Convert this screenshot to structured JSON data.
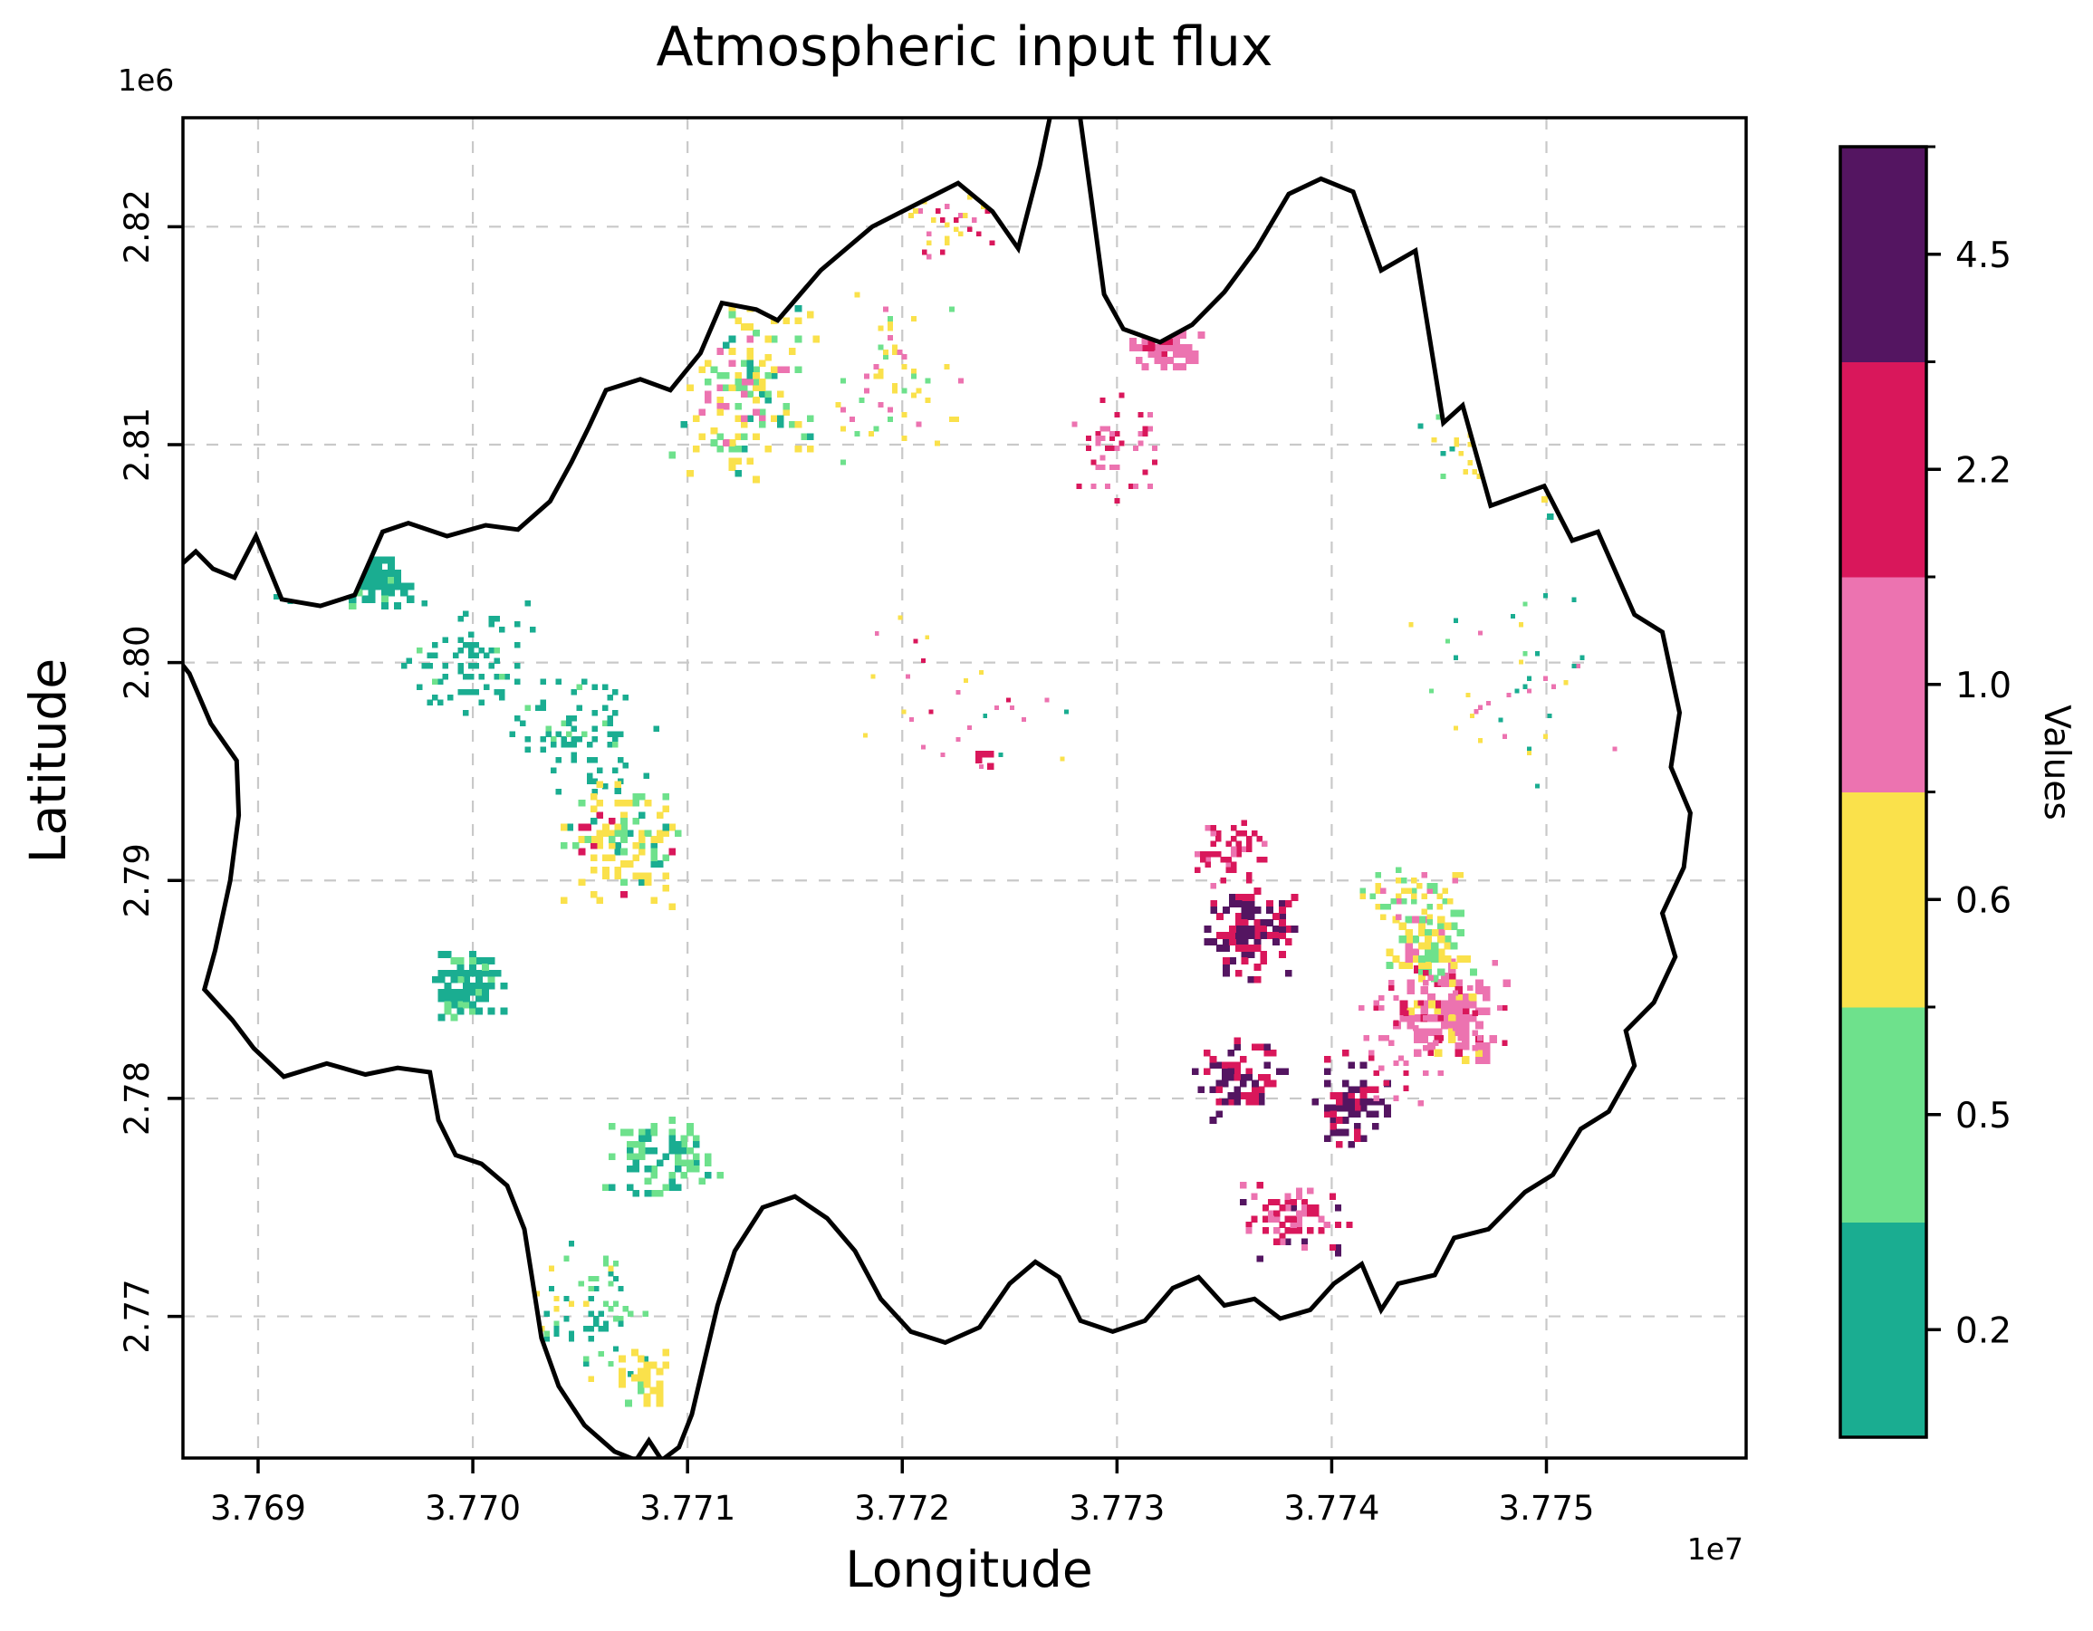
{
  "chart_data": {
    "type": "heatmap",
    "title": "Atmospheric input flux",
    "xlabel": "Longitude",
    "ylabel": "Latitude",
    "x_offset_text": "1e7",
    "y_offset_text": "1e6",
    "grid": true,
    "xlim": [
      37686500,
      37759300
    ],
    "ylim": [
      2763500,
      2825000
    ],
    "xticks": [
      37690000,
      37700000,
      37710000,
      37720000,
      37730000,
      37740000,
      37750000
    ],
    "xtick_labels": [
      "3.769",
      "3.770",
      "3.771",
      "3.772",
      "3.773",
      "3.774",
      "3.775"
    ],
    "yticks": [
      2770000,
      2780000,
      2790000,
      2800000,
      2810000,
      2820000
    ],
    "ytick_labels": [
      "2.77",
      "2.78",
      "2.79",
      "2.80",
      "2.81",
      "2.82"
    ],
    "colorbar": {
      "label": "Values",
      "position": "right",
      "classes_bottom_to_top": [
        {
          "label": "0.2",
          "color": "#1aad91"
        },
        {
          "label": "0.5",
          "color": "#6ee18c"
        },
        {
          "label": "0.6",
          "color": "#fae14b"
        },
        {
          "label": "1.0",
          "color": "#ec73b0"
        },
        {
          "label": "2.2",
          "color": "#d9175b"
        },
        {
          "label": "4.5",
          "color": "#541561"
        }
      ]
    },
    "boundary_color": "#000000",
    "grid_color": "#c9c9c9",
    "boundary": [
      [
        37686200,
        2804300
      ],
      [
        37687100,
        2805100
      ],
      [
        37687900,
        2804300
      ],
      [
        37688900,
        2803900
      ],
      [
        37689900,
        2805800
      ],
      [
        37691100,
        2802900
      ],
      [
        37692900,
        2802600
      ],
      [
        37694500,
        2803100
      ],
      [
        37695800,
        2806000
      ],
      [
        37697000,
        2806400
      ],
      [
        37698800,
        2805800
      ],
      [
        37700600,
        2806300
      ],
      [
        37702100,
        2806100
      ],
      [
        37703600,
        2807400
      ],
      [
        37704600,
        2809200
      ],
      [
        37705400,
        2810800
      ],
      [
        37706200,
        2812500
      ],
      [
        37707800,
        2813000
      ],
      [
        37709200,
        2812500
      ],
      [
        37710600,
        2814200
      ],
      [
        37711600,
        2816500
      ],
      [
        37713200,
        2816200
      ],
      [
        37714200,
        2815700
      ],
      [
        37716200,
        2818000
      ],
      [
        37718600,
        2820000
      ],
      [
        37721000,
        2821200
      ],
      [
        37722600,
        2822000
      ],
      [
        37724200,
        2820700
      ],
      [
        37725400,
        2819000
      ],
      [
        37726400,
        2822800
      ],
      [
        37727000,
        2825600
      ],
      [
        37728200,
        2825600
      ],
      [
        37728800,
        2821300
      ],
      [
        37729400,
        2816900
      ],
      [
        37730300,
        2815300
      ],
      [
        37732000,
        2814700
      ],
      [
        37733500,
        2815500
      ],
      [
        37735000,
        2817000
      ],
      [
        37736500,
        2819000
      ],
      [
        37738000,
        2821500
      ],
      [
        37739500,
        2822200
      ],
      [
        37741000,
        2821600
      ],
      [
        37742300,
        2818000
      ],
      [
        37743900,
        2818900
      ],
      [
        37745200,
        2811000
      ],
      [
        37746100,
        2811800
      ],
      [
        37747400,
        2807200
      ],
      [
        37749900,
        2808100
      ],
      [
        37751200,
        2805600
      ],
      [
        37752400,
        2806000
      ],
      [
        37754100,
        2802200
      ],
      [
        37755400,
        2801400
      ],
      [
        37756200,
        2797700
      ],
      [
        37755800,
        2795200
      ],
      [
        37756700,
        2793100
      ],
      [
        37756400,
        2790600
      ],
      [
        37755400,
        2788500
      ],
      [
        37756000,
        2786500
      ],
      [
        37755000,
        2784400
      ],
      [
        37753700,
        2783100
      ],
      [
        37754100,
        2781500
      ],
      [
        37752900,
        2779400
      ],
      [
        37751600,
        2778600
      ],
      [
        37750300,
        2776500
      ],
      [
        37749000,
        2775700
      ],
      [
        37747300,
        2774000
      ],
      [
        37745700,
        2773600
      ],
      [
        37744800,
        2771900
      ],
      [
        37743100,
        2771500
      ],
      [
        37742300,
        2770300
      ],
      [
        37741400,
        2772400
      ],
      [
        37740100,
        2771500
      ],
      [
        37739000,
        2770300
      ],
      [
        37737600,
        2769900
      ],
      [
        37736400,
        2770800
      ],
      [
        37735000,
        2770500
      ],
      [
        37733800,
        2771800
      ],
      [
        37732600,
        2771300
      ],
      [
        37731300,
        2769800
      ],
      [
        37729800,
        2769300
      ],
      [
        37728300,
        2769800
      ],
      [
        37727300,
        2771800
      ],
      [
        37726200,
        2772500
      ],
      [
        37725000,
        2771500
      ],
      [
        37723600,
        2769500
      ],
      [
        37722000,
        2768800
      ],
      [
        37720400,
        2769300
      ],
      [
        37719000,
        2770800
      ],
      [
        37717800,
        2773000
      ],
      [
        37716500,
        2774500
      ],
      [
        37715000,
        2775500
      ],
      [
        37713500,
        2775000
      ],
      [
        37712200,
        2773000
      ],
      [
        37711400,
        2770500
      ],
      [
        37710800,
        2768000
      ],
      [
        37710200,
        2765500
      ],
      [
        37709600,
        2764000
      ],
      [
        37708800,
        2763400
      ],
      [
        37708200,
        2764300
      ],
      [
        37707600,
        2763400
      ],
      [
        37706600,
        2763800
      ],
      [
        37705200,
        2765000
      ],
      [
        37704000,
        2766800
      ],
      [
        37703200,
        2769000
      ],
      [
        37702800,
        2771500
      ],
      [
        37702400,
        2774000
      ],
      [
        37701600,
        2776000
      ],
      [
        37700400,
        2777000
      ],
      [
        37699200,
        2777400
      ],
      [
        37698400,
        2779000
      ],
      [
        37698000,
        2781200
      ],
      [
        37696500,
        2781400
      ],
      [
        37695000,
        2781100
      ],
      [
        37693200,
        2781600
      ],
      [
        37691200,
        2781000
      ],
      [
        37689800,
        2782300
      ],
      [
        37688800,
        2783600
      ],
      [
        37687500,
        2785000
      ],
      [
        37688000,
        2786800
      ],
      [
        37688700,
        2790000
      ],
      [
        37689100,
        2793000
      ],
      [
        37689000,
        2795500
      ],
      [
        37687800,
        2797200
      ],
      [
        37686800,
        2799500
      ],
      [
        37685900,
        2800600
      ]
    ],
    "palette": {
      "teal": "#1aad91",
      "green": "#6ee18c",
      "yellow": "#fae14b",
      "pink": "#ec73b0",
      "crimson": "#d9175b",
      "purple": "#541561"
    },
    "clusters": [
      {
        "name": "nw-teal-blob",
        "cx": 37695600,
        "cy": 2803800,
        "rx": 1500,
        "ry": 1300,
        "n": 100,
        "s": 300,
        "seed": 11,
        "mix": [
          [
            "teal",
            0.85
          ],
          [
            "green",
            0.15
          ]
        ]
      },
      {
        "name": "nw-teal-sparse",
        "cx": 37692600,
        "cy": 2803600,
        "rx": 2200,
        "ry": 1200,
        "n": 30,
        "s": 220,
        "seed": 12,
        "mix": [
          [
            "teal",
            1
          ]
        ]
      },
      {
        "name": "w-teal-band",
        "cx": 37699800,
        "cy": 2800200,
        "rx": 3200,
        "ry": 2800,
        "n": 70,
        "s": 240,
        "seed": 13,
        "mix": [
          [
            "teal",
            0.9
          ],
          [
            "green",
            0.1
          ]
        ]
      },
      {
        "name": "c-teal-trail",
        "cx": 37704800,
        "cy": 2796800,
        "rx": 3800,
        "ry": 3200,
        "n": 80,
        "s": 240,
        "seed": 14,
        "mix": [
          [
            "teal",
            0.8
          ],
          [
            "green",
            0.2
          ]
        ]
      },
      {
        "name": "n-yellow-green",
        "cx": 37712800,
        "cy": 2812600,
        "rx": 3800,
        "ry": 4600,
        "n": 150,
        "s": 280,
        "seed": 15,
        "mix": [
          [
            "yellow",
            0.48
          ],
          [
            "green",
            0.3
          ],
          [
            "teal",
            0.12
          ],
          [
            "pink",
            0.1
          ]
        ]
      },
      {
        "name": "n-sparse-mid",
        "cx": 37719500,
        "cy": 2812500,
        "rx": 3500,
        "ry": 4500,
        "n": 55,
        "s": 220,
        "seed": 16,
        "mix": [
          [
            "yellow",
            0.5
          ],
          [
            "pink",
            0.3
          ],
          [
            "green",
            0.2
          ]
        ]
      },
      {
        "name": "n-pink-cluster",
        "cx": 37732200,
        "cy": 2814600,
        "rx": 2100,
        "ry": 1500,
        "n": 85,
        "s": 290,
        "seed": 17,
        "mix": [
          [
            "pink",
            0.72
          ],
          [
            "crimson",
            0.28
          ]
        ]
      },
      {
        "name": "n-crimson-trail",
        "cx": 37730000,
        "cy": 2809800,
        "rx": 2300,
        "ry": 2800,
        "n": 45,
        "s": 220,
        "seed": 18,
        "mix": [
          [
            "crimson",
            0.55
          ],
          [
            "pink",
            0.45
          ]
        ]
      },
      {
        "name": "w-yellow-cluster",
        "cx": 37707000,
        "cy": 2791800,
        "rx": 3000,
        "ry": 3300,
        "n": 120,
        "s": 280,
        "seed": 19,
        "mix": [
          [
            "yellow",
            0.62
          ],
          [
            "green",
            0.2
          ],
          [
            "teal",
            0.1
          ],
          [
            "crimson",
            0.08
          ]
        ]
      },
      {
        "name": "sw-teal-dense",
        "cx": 37699900,
        "cy": 2785100,
        "rx": 1900,
        "ry": 1900,
        "n": 100,
        "s": 290,
        "seed": 20,
        "mix": [
          [
            "teal",
            0.78
          ],
          [
            "green",
            0.22
          ]
        ]
      },
      {
        "name": "s-green-cluster",
        "cx": 37708800,
        "cy": 2777400,
        "rx": 3000,
        "ry": 2100,
        "n": 95,
        "s": 280,
        "seed": 21,
        "mix": [
          [
            "green",
            0.58
          ],
          [
            "teal",
            0.42
          ]
        ]
      },
      {
        "name": "lobe-scatter",
        "cx": 37705600,
        "cy": 2770200,
        "rx": 2900,
        "ry": 3600,
        "n": 70,
        "s": 230,
        "seed": 22,
        "mix": [
          [
            "teal",
            0.5
          ],
          [
            "green",
            0.32
          ],
          [
            "yellow",
            0.18
          ]
        ]
      },
      {
        "name": "lobe-yellow",
        "cx": 37708000,
        "cy": 2767200,
        "rx": 1300,
        "ry": 1500,
        "n": 45,
        "s": 290,
        "seed": 23,
        "mix": [
          [
            "yellow",
            0.8
          ],
          [
            "green",
            0.2
          ]
        ]
      },
      {
        "name": "se-crimson-north",
        "cx": 37735600,
        "cy": 2791200,
        "rx": 2000,
        "ry": 1700,
        "n": 55,
        "s": 240,
        "seed": 24,
        "mix": [
          [
            "crimson",
            0.78
          ],
          [
            "pink",
            0.22
          ]
        ]
      },
      {
        "name": "se-crimson-purple",
        "cx": 37736300,
        "cy": 2787600,
        "rx": 2300,
        "ry": 2400,
        "n": 120,
        "s": 290,
        "seed": 25,
        "mix": [
          [
            "crimson",
            0.5
          ],
          [
            "purple",
            0.5
          ]
        ]
      },
      {
        "name": "se-purple-mid",
        "cx": 37735700,
        "cy": 2780800,
        "rx": 2300,
        "ry": 2000,
        "n": 75,
        "s": 280,
        "seed": 26,
        "mix": [
          [
            "purple",
            0.6
          ],
          [
            "crimson",
            0.4
          ]
        ]
      },
      {
        "name": "se-purple-east",
        "cx": 37740900,
        "cy": 2779900,
        "rx": 1900,
        "ry": 2300,
        "n": 75,
        "s": 280,
        "seed": 27,
        "mix": [
          [
            "purple",
            0.62
          ],
          [
            "crimson",
            0.38
          ]
        ]
      },
      {
        "name": "se-crimson-south",
        "cx": 37738300,
        "cy": 2774400,
        "rx": 2600,
        "ry": 1900,
        "n": 85,
        "s": 260,
        "seed": 28,
        "mix": [
          [
            "crimson",
            0.6
          ],
          [
            "pink",
            0.26
          ],
          [
            "purple",
            0.14
          ]
        ]
      },
      {
        "name": "se-pink-big",
        "cx": 37745600,
        "cy": 2783900,
        "rx": 2700,
        "ry": 2300,
        "n": 140,
        "s": 320,
        "seed": 29,
        "mix": [
          [
            "pink",
            0.8
          ],
          [
            "crimson",
            0.1
          ],
          [
            "yellow",
            0.1
          ]
        ]
      },
      {
        "name": "se-yellow-green",
        "cx": 37744400,
        "cy": 2787000,
        "rx": 2300,
        "ry": 1700,
        "n": 75,
        "s": 300,
        "seed": 30,
        "mix": [
          [
            "yellow",
            0.5
          ],
          [
            "green",
            0.33
          ],
          [
            "pink",
            0.17
          ]
        ]
      },
      {
        "name": "se-mix-top",
        "cx": 37743800,
        "cy": 2789300,
        "rx": 2800,
        "ry": 1300,
        "n": 50,
        "s": 240,
        "seed": 31,
        "mix": [
          [
            "yellow",
            0.4
          ],
          [
            "green",
            0.3
          ],
          [
            "pink",
            0.3
          ]
        ]
      },
      {
        "name": "se-pink-scatter",
        "cx": 37744500,
        "cy": 2783000,
        "rx": 4600,
        "ry": 3600,
        "n": 60,
        "s": 230,
        "seed": 32,
        "mix": [
          [
            "pink",
            0.7
          ],
          [
            "crimson",
            0.3
          ]
        ]
      },
      {
        "name": "e-sparse",
        "cx": 37748500,
        "cy": 2798500,
        "rx": 5200,
        "ry": 5200,
        "n": 40,
        "s": 190,
        "seed": 33,
        "mix": [
          [
            "teal",
            0.4
          ],
          [
            "yellow",
            0.3
          ],
          [
            "pink",
            0.2
          ],
          [
            "green",
            0.1
          ]
        ]
      },
      {
        "name": "ne-sparse",
        "cx": 37746200,
        "cy": 2810400,
        "rx": 2200,
        "ry": 2200,
        "n": 35,
        "s": 210,
        "seed": 34,
        "mix": [
          [
            "yellow",
            0.5
          ],
          [
            "teal",
            0.3
          ],
          [
            "green",
            0.2
          ]
        ]
      },
      {
        "name": "e-edge-yellow",
        "cx": 37750600,
        "cy": 2807600,
        "rx": 1100,
        "ry": 1300,
        "n": 28,
        "s": 260,
        "seed": 35,
        "mix": [
          [
            "yellow",
            0.7
          ],
          [
            "teal",
            0.3
          ]
        ]
      },
      {
        "name": "top-sparse",
        "cx": 37721800,
        "cy": 2820300,
        "rx": 2600,
        "ry": 1900,
        "n": 32,
        "s": 210,
        "seed": 36,
        "mix": [
          [
            "yellow",
            0.45
          ],
          [
            "pink",
            0.35
          ],
          [
            "crimson",
            0.2
          ]
        ]
      },
      {
        "name": "c-sparse",
        "cx": 37722500,
        "cy": 2798500,
        "rx": 6000,
        "ry": 4500,
        "n": 28,
        "s": 180,
        "seed": 37,
        "mix": [
          [
            "pink",
            0.3
          ],
          [
            "yellow",
            0.3
          ],
          [
            "teal",
            0.2
          ],
          [
            "crimson",
            0.2
          ]
        ]
      },
      {
        "name": "c-crimson-dot",
        "cx": 37723800,
        "cy": 2795300,
        "rx": 700,
        "ry": 700,
        "n": 7,
        "s": 280,
        "seed": 38,
        "mix": [
          [
            "crimson",
            1
          ]
        ]
      },
      {
        "name": "nw-top-sparse",
        "cx": 37709500,
        "cy": 2817500,
        "rx": 2500,
        "ry": 2200,
        "n": 30,
        "s": 210,
        "seed": 39,
        "mix": [
          [
            "green",
            0.5
          ],
          [
            "yellow",
            0.3
          ],
          [
            "teal",
            0.2
          ]
        ]
      }
    ]
  }
}
